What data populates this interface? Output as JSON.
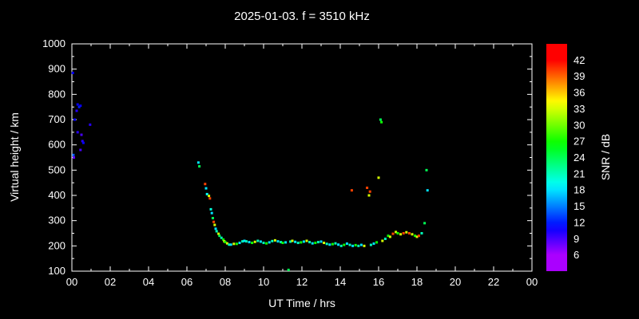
{
  "title": "2025-01-03. f = 3510 kHz",
  "chart_data": {
    "type": "scatter",
    "title": "2025-01-03. f = 3510 kHz",
    "xlabel": "UT Time / hrs",
    "ylabel": "Virtual height / km",
    "colorbar_label": "SNR / dB",
    "xlim": [
      0,
      24
    ],
    "ylim": [
      100,
      1000
    ],
    "x_ticks": [
      {
        "value": 0,
        "label": "00"
      },
      {
        "value": 2,
        "label": "02"
      },
      {
        "value": 4,
        "label": "04"
      },
      {
        "value": 6,
        "label": "06"
      },
      {
        "value": 8,
        "label": "08"
      },
      {
        "value": 10,
        "label": "10"
      },
      {
        "value": 12,
        "label": "12"
      },
      {
        "value": 14,
        "label": "14"
      },
      {
        "value": 16,
        "label": "16"
      },
      {
        "value": 18,
        "label": "18"
      },
      {
        "value": 20,
        "label": "20"
      },
      {
        "value": 22,
        "label": "22"
      },
      {
        "value": 24,
        "label": "00"
      }
    ],
    "y_ticks": [
      100,
      200,
      300,
      400,
      500,
      600,
      700,
      800,
      900,
      1000
    ],
    "colorbar": {
      "min": 6,
      "max": 42,
      "scale_min": 3,
      "scale_max": 45,
      "ticks": [
        42,
        39,
        36,
        33,
        30,
        27,
        24,
        21,
        18,
        15,
        12,
        9,
        6
      ],
      "color_low": "#8800ff",
      "color_mid": "#00cc88",
      "color_high": "#ff0000"
    },
    "points_format": [
      "ut_hours",
      "virtual_height_km",
      "snr_db"
    ],
    "points": [
      [
        0.05,
        885,
        11
      ],
      [
        0.08,
        560,
        14
      ],
      [
        0.1,
        550,
        8
      ],
      [
        0.15,
        700,
        11
      ],
      [
        0.25,
        735,
        10
      ],
      [
        0.3,
        760,
        11
      ],
      [
        0.38,
        750,
        12
      ],
      [
        0.45,
        755,
        11
      ],
      [
        0.3,
        650,
        10
      ],
      [
        0.5,
        640,
        9
      ],
      [
        0.55,
        615,
        10
      ],
      [
        0.45,
        580,
        9
      ],
      [
        0.6,
        608,
        11
      ],
      [
        0.95,
        680,
        10
      ],
      [
        6.6,
        530,
        18
      ],
      [
        6.65,
        515,
        24
      ],
      [
        6.95,
        445,
        40
      ],
      [
        7.0,
        428,
        18
      ],
      [
        7.05,
        405,
        19
      ],
      [
        7.15,
        398,
        33
      ],
      [
        7.2,
        388,
        40
      ],
      [
        7.25,
        345,
        20
      ],
      [
        7.3,
        330,
        18
      ],
      [
        7.35,
        310,
        24
      ],
      [
        7.4,
        295,
        40
      ],
      [
        7.45,
        283,
        33
      ],
      [
        7.5,
        268,
        18
      ],
      [
        7.55,
        258,
        21
      ],
      [
        7.65,
        248,
        33
      ],
      [
        7.7,
        240,
        24
      ],
      [
        7.8,
        232,
        21
      ],
      [
        7.9,
        225,
        27
      ],
      [
        7.95,
        218,
        33
      ],
      [
        8.0,
        215,
        27
      ],
      [
        8.1,
        210,
        33
      ],
      [
        8.2,
        205,
        21
      ],
      [
        8.3,
        205,
        18
      ],
      [
        8.45,
        208,
        33
      ],
      [
        8.6,
        208,
        27
      ],
      [
        8.75,
        212,
        18
      ],
      [
        8.9,
        218,
        21
      ],
      [
        9.0,
        220,
        18
      ],
      [
        9.1,
        218,
        21
      ],
      [
        9.25,
        215,
        18
      ],
      [
        9.4,
        212,
        27
      ],
      [
        9.55,
        216,
        33
      ],
      [
        9.7,
        220,
        21
      ],
      [
        9.85,
        217,
        18
      ],
      [
        10.0,
        212,
        21
      ],
      [
        10.15,
        210,
        27
      ],
      [
        10.3,
        214,
        18
      ],
      [
        10.45,
        219,
        21
      ],
      [
        10.6,
        222,
        33
      ],
      [
        10.75,
        218,
        18
      ],
      [
        10.9,
        215,
        21
      ],
      [
        11.0,
        212,
        27
      ],
      [
        11.15,
        214,
        18
      ],
      [
        11.3,
        105,
        24
      ],
      [
        11.4,
        217,
        21
      ],
      [
        11.5,
        220,
        33
      ],
      [
        11.65,
        216,
        18
      ],
      [
        11.8,
        212,
        21
      ],
      [
        11.95,
        214,
        27
      ],
      [
        12.1,
        217,
        18
      ],
      [
        12.25,
        220,
        33
      ],
      [
        12.4,
        215,
        21
      ],
      [
        12.55,
        210,
        18
      ],
      [
        12.7,
        212,
        27
      ],
      [
        12.85,
        215,
        21
      ],
      [
        13.0,
        217,
        18
      ],
      [
        13.15,
        212,
        33
      ],
      [
        13.3,
        208,
        21
      ],
      [
        13.45,
        205,
        18
      ],
      [
        13.6,
        207,
        27
      ],
      [
        13.75,
        210,
        21
      ],
      [
        13.9,
        205,
        18
      ],
      [
        14.05,
        200,
        21
      ],
      [
        14.2,
        204,
        27
      ],
      [
        14.35,
        209,
        18
      ],
      [
        14.5,
        204,
        21
      ],
      [
        14.65,
        200,
        18
      ],
      [
        14.8,
        203,
        27
      ],
      [
        14.95,
        200,
        21
      ],
      [
        15.1,
        204,
        18
      ],
      [
        15.25,
        200,
        33
      ],
      [
        15.6,
        204,
        21
      ],
      [
        15.75,
        209,
        18
      ],
      [
        15.9,
        214,
        27
      ],
      [
        16.2,
        220,
        33
      ],
      [
        16.35,
        228,
        21
      ],
      [
        14.6,
        420,
        40
      ],
      [
        15.4,
        430,
        40
      ],
      [
        15.5,
        400,
        33
      ],
      [
        15.55,
        415,
        40
      ],
      [
        16.0,
        470,
        33
      ],
      [
        16.1,
        700,
        24
      ],
      [
        16.15,
        690,
        27
      ],
      [
        16.5,
        240,
        27
      ],
      [
        16.6,
        236,
        33
      ],
      [
        16.75,
        248,
        40
      ],
      [
        16.9,
        255,
        33
      ],
      [
        17.0,
        250,
        27
      ],
      [
        17.15,
        246,
        33
      ],
      [
        17.3,
        250,
        40
      ],
      [
        17.45,
        254,
        33
      ],
      [
        17.6,
        250,
        40
      ],
      [
        17.75,
        246,
        33
      ],
      [
        17.9,
        240,
        27
      ],
      [
        18.0,
        236,
        33
      ],
      [
        18.1,
        240,
        40
      ],
      [
        18.25,
        250,
        21
      ],
      [
        18.4,
        290,
        24
      ],
      [
        18.5,
        500,
        24
      ],
      [
        18.55,
        420,
        18
      ]
    ]
  }
}
